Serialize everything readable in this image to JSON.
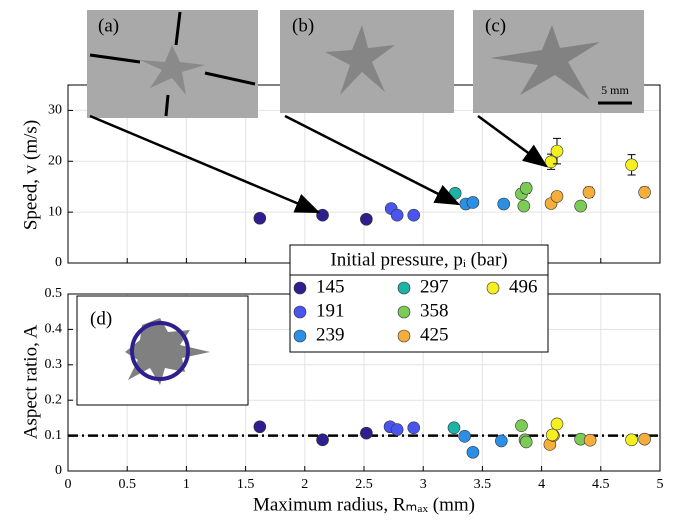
{
  "chart_data": [
    {
      "type": "scatter",
      "ylabel": "Speed, v (m/s)",
      "legend_title": "Initial pressure, pᵢ (bar)",
      "xlim": [
        0,
        5
      ],
      "xticks": [
        0,
        0.5,
        1,
        1.5,
        2,
        2.5,
        3,
        3.5,
        4,
        4.5,
        5
      ],
      "ylim": [
        0,
        35
      ],
      "yticks": [
        0,
        10,
        20,
        30
      ],
      "grid": true,
      "series": [
        {
          "name": "145",
          "color": "#2d1f8e",
          "x": [
            1.62,
            2.15,
            2.52
          ],
          "values": [
            8.8,
            9.4,
            8.6
          ],
          "errors": [
            0.4,
            0.4,
            0.4
          ]
        },
        {
          "name": "191",
          "color": "#4a55f0",
          "x": [
            2.73,
            2.78,
            2.92
          ],
          "values": [
            10.7,
            9.4,
            9.4
          ],
          "errors": [
            0.4,
            0.4,
            0.4
          ]
        },
        {
          "name": "239",
          "color": "#2b8fe6",
          "x": [
            3.36,
            3.42,
            3.68
          ],
          "values": [
            11.6,
            11.9,
            11.6
          ],
          "errors": [
            0.4,
            0.4,
            0.4
          ]
        },
        {
          "name": "297",
          "color": "#1db3a6",
          "x": [
            3.27
          ],
          "values": [
            13.7
          ],
          "errors": [
            0.8
          ]
        },
        {
          "name": "358",
          "color": "#7ccb55",
          "x": [
            3.83,
            3.87,
            3.85,
            4.33
          ],
          "values": [
            13.6,
            14.7,
            11.2,
            11.2
          ],
          "errors": [
            0.8,
            1.0,
            0.5,
            0.5
          ]
        },
        {
          "name": "425",
          "color": "#f5ae3a",
          "x": [
            4.08,
            4.13,
            4.4,
            4.87
          ],
          "values": [
            11.7,
            13.1,
            13.9,
            13.9
          ],
          "errors": [
            0.6,
            0.8,
            1.0,
            1.0
          ]
        },
        {
          "name": "496",
          "color": "#f4f01f",
          "x": [
            4.08,
            4.13,
            4.76
          ],
          "values": [
            19.9,
            22.0,
            19.3
          ],
          "errors": [
            1.5,
            2.5,
            2.0
          ]
        }
      ]
    },
    {
      "type": "scatter",
      "ylabel": "Aspect ratio, A",
      "xlabel": "Maximum radius, Rₘₐₓ (mm)",
      "xlim": [
        0,
        5
      ],
      "xticks": [
        0,
        0.5,
        1,
        1.5,
        2,
        2.5,
        3,
        3.5,
        4,
        4.5,
        5
      ],
      "ylim": [
        0,
        0.5
      ],
      "yticks": [
        0,
        0.1,
        0.2,
        0.3,
        0.4,
        0.5
      ],
      "grid": true,
      "reference_line": 0.1,
      "series": [
        {
          "color": "#2d1f8e",
          "x": [
            1.62,
            2.15,
            2.52
          ],
          "values": [
            0.125,
            0.088,
            0.107
          ]
        },
        {
          "color": "#4a55f0",
          "x": [
            2.72,
            2.78,
            2.92
          ],
          "values": [
            0.125,
            0.117,
            0.122
          ]
        },
        {
          "color": "#2b8fe6",
          "x": [
            3.35,
            3.42,
            3.66
          ],
          "values": [
            0.098,
            0.053,
            0.085
          ]
        },
        {
          "color": "#1db3a6",
          "x": [
            3.26
          ],
          "values": [
            0.122
          ]
        },
        {
          "color": "#7ccb55",
          "x": [
            3.83,
            3.86,
            3.87,
            4.33
          ],
          "values": [
            0.128,
            0.088,
            0.082,
            0.09
          ]
        },
        {
          "color": "#f5ae3a",
          "x": [
            4.07,
            4.1,
            4.41,
            4.87
          ],
          "values": [
            0.075,
            0.1,
            0.087,
            0.09
          ]
        },
        {
          "color": "#f4f01f",
          "x": [
            4.09,
            4.13,
            4.76
          ],
          "values": [
            0.102,
            0.133,
            0.088
          ]
        }
      ]
    }
  ],
  "insets": {
    "labels": [
      "(a)",
      "(b)",
      "(c)",
      "(d)"
    ],
    "scale_bar": "5 mm"
  }
}
